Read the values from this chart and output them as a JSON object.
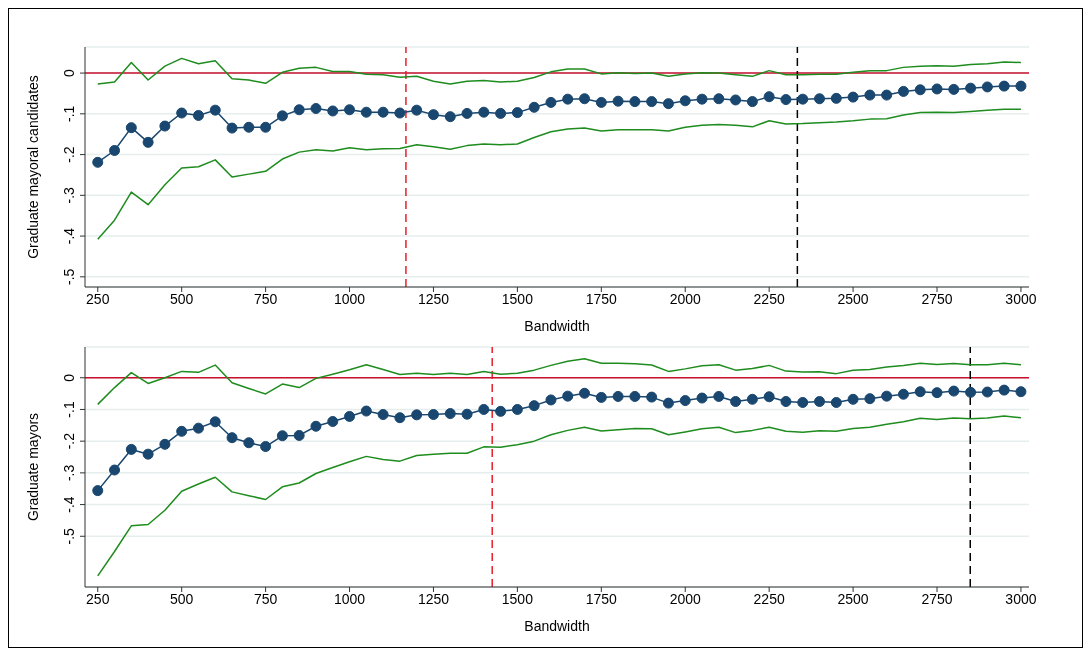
{
  "chart_data": [
    {
      "type": "line",
      "xlabel": "Bandwidth",
      "ylabel": "Graduate mayoral candidates",
      "x": [
        250,
        300,
        350,
        400,
        450,
        500,
        550,
        600,
        650,
        700,
        750,
        800,
        850,
        900,
        950,
        1000,
        1050,
        1100,
        1150,
        1200,
        1250,
        1300,
        1350,
        1400,
        1450,
        1500,
        1550,
        1600,
        1650,
        1700,
        1750,
        1800,
        1850,
        1900,
        1950,
        2000,
        2050,
        2100,
        2150,
        2200,
        2250,
        2300,
        2350,
        2400,
        2450,
        2500,
        2550,
        2600,
        2650,
        2700,
        2750,
        2800,
        2850,
        2900,
        2950,
        3000
      ],
      "series": [
        {
          "color": "#1a476f",
          "marker": "circle",
          "values": [
            -0.219,
            -0.19,
            -0.134,
            -0.17,
            -0.13,
            -0.098,
            -0.104,
            -0.091,
            -0.135,
            -0.133,
            -0.133,
            -0.105,
            -0.09,
            -0.087,
            -0.093,
            -0.09,
            -0.096,
            -0.096,
            -0.098,
            -0.091,
            -0.102,
            -0.107,
            -0.099,
            -0.096,
            -0.099,
            -0.097,
            -0.084,
            -0.072,
            -0.064,
            -0.063,
            -0.072,
            -0.069,
            -0.07,
            -0.07,
            -0.075,
            -0.068,
            -0.064,
            -0.063,
            -0.066,
            -0.07,
            -0.058,
            -0.065,
            -0.064,
            -0.063,
            -0.062,
            -0.059,
            -0.054,
            -0.054,
            -0.045,
            -0.041,
            -0.039,
            -0.04,
            -0.037,
            -0.034,
            -0.032,
            -0.032
          ]
        },
        {
          "color": "#1e8c1e",
          "marker": "none",
          "values": [
            -0.027,
            -0.022,
            0.026,
            -0.017,
            0.017,
            0.036,
            0.023,
            0.03,
            -0.014,
            -0.017,
            -0.025,
            0.002,
            0.012,
            0.014,
            0.004,
            0.004,
            -0.003,
            -0.004,
            -0.01,
            -0.008,
            -0.02,
            -0.027,
            -0.02,
            -0.018,
            -0.022,
            -0.02,
            -0.011,
            0.003,
            0.01,
            0.01,
            -0.002,
            0.001,
            -0.001,
            0,
            -0.008,
            -0.002,
            0.001,
            0,
            -0.004,
            -0.008,
            0.006,
            -0.004,
            -0.004,
            -0.003,
            -0.003,
            0.002,
            0.006,
            0.006,
            0.014,
            0.017,
            0.018,
            0.017,
            0.021,
            0.023,
            0.027,
            0.026
          ]
        },
        {
          "color": "#1e8c1e",
          "marker": "none",
          "values": [
            -0.408,
            -0.361,
            -0.292,
            -0.323,
            -0.274,
            -0.233,
            -0.23,
            -0.213,
            -0.255,
            -0.248,
            -0.241,
            -0.211,
            -0.194,
            -0.188,
            -0.191,
            -0.183,
            -0.188,
            -0.186,
            -0.185,
            -0.176,
            -0.181,
            -0.187,
            -0.178,
            -0.174,
            -0.176,
            -0.174,
            -0.158,
            -0.144,
            -0.137,
            -0.135,
            -0.142,
            -0.139,
            -0.139,
            -0.139,
            -0.142,
            -0.133,
            -0.128,
            -0.126,
            -0.128,
            -0.132,
            -0.117,
            -0.125,
            -0.124,
            -0.122,
            -0.12,
            -0.117,
            -0.113,
            -0.112,
            -0.103,
            -0.097,
            -0.096,
            -0.097,
            -0.094,
            -0.091,
            -0.089,
            -0.089
          ]
        }
      ],
      "xlim": [
        212,
        3024
      ],
      "xticks": [
        250,
        500,
        750,
        1000,
        1250,
        1500,
        1750,
        2000,
        2250,
        2500,
        2750,
        3000
      ],
      "ylim": [
        -0.525,
        0.064
      ],
      "yticks": [
        {
          "value": 0,
          "label": "0"
        },
        {
          "value": -0.1,
          "label": "-.1"
        },
        {
          "value": -0.2,
          "label": "-.2"
        },
        {
          "value": -0.3,
          "label": "-.3"
        },
        {
          "value": -0.4,
          "label": "-.4"
        },
        {
          "value": -0.5,
          "label": "-.5"
        }
      ],
      "grid": "y",
      "line_style": "solid",
      "ref_lines": [
        {
          "axis": "y",
          "value": 0,
          "color": "#c8102e",
          "line_style": "solid"
        },
        {
          "axis": "x",
          "value": 1168,
          "color": "#e8202a",
          "line_style": "dashed"
        },
        {
          "axis": "x",
          "value": 2334,
          "color": "#000000",
          "line_style": "dashed"
        }
      ]
    },
    {
      "type": "line",
      "xlabel": "Bandwidth",
      "ylabel": "Graduate mayors",
      "x": [
        250,
        300,
        350,
        400,
        450,
        500,
        550,
        600,
        650,
        700,
        750,
        800,
        850,
        900,
        950,
        1000,
        1050,
        1100,
        1150,
        1200,
        1250,
        1300,
        1350,
        1400,
        1450,
        1500,
        1550,
        1600,
        1650,
        1700,
        1750,
        1800,
        1850,
        1900,
        1950,
        2000,
        2050,
        2100,
        2150,
        2200,
        2250,
        2300,
        2350,
        2400,
        2450,
        2500,
        2550,
        2600,
        2650,
        2700,
        2750,
        2800,
        2850,
        2900,
        2950,
        3000
      ],
      "series": [
        {
          "color": "#1a476f",
          "marker": "circle",
          "values": [
            -0.356,
            -0.291,
            -0.226,
            -0.241,
            -0.21,
            -0.169,
            -0.159,
            -0.139,
            -0.189,
            -0.205,
            -0.217,
            -0.183,
            -0.182,
            -0.153,
            -0.138,
            -0.122,
            -0.105,
            -0.116,
            -0.126,
            -0.117,
            -0.116,
            -0.113,
            -0.115,
            -0.1,
            -0.106,
            -0.1,
            -0.088,
            -0.07,
            -0.058,
            -0.049,
            -0.062,
            -0.059,
            -0.059,
            -0.061,
            -0.08,
            -0.072,
            -0.064,
            -0.059,
            -0.075,
            -0.068,
            -0.06,
            -0.075,
            -0.078,
            -0.075,
            -0.078,
            -0.068,
            -0.066,
            -0.058,
            -0.052,
            -0.044,
            -0.047,
            -0.042,
            -0.046,
            -0.045,
            -0.039,
            -0.044
          ]
        },
        {
          "color": "#1e8c1e",
          "marker": "none",
          "values": [
            -0.084,
            -0.031,
            0.016,
            -0.018,
            0,
            0.02,
            0.017,
            0.04,
            -0.016,
            -0.034,
            -0.051,
            -0.02,
            -0.031,
            -0.002,
            0.011,
            0.025,
            0.041,
            0.026,
            0.01,
            0.014,
            0.01,
            0.014,
            0.01,
            0.02,
            0.011,
            0.014,
            0.024,
            0.039,
            0.052,
            0.06,
            0.046,
            0.046,
            0.044,
            0.04,
            0.02,
            0.028,
            0.038,
            0.041,
            0.024,
            0.029,
            0.039,
            0.021,
            0.018,
            0.019,
            0.013,
            0.024,
            0.026,
            0.034,
            0.039,
            0.046,
            0.042,
            0.045,
            0.041,
            0.041,
            0.046,
            0.041
          ]
        },
        {
          "color": "#1e8c1e",
          "marker": "none",
          "values": [
            -0.625,
            -0.548,
            -0.467,
            -0.463,
            -0.418,
            -0.358,
            -0.335,
            -0.314,
            -0.36,
            -0.372,
            -0.384,
            -0.344,
            -0.332,
            -0.302,
            -0.283,
            -0.265,
            -0.248,
            -0.258,
            -0.263,
            -0.245,
            -0.241,
            -0.238,
            -0.238,
            -0.218,
            -0.219,
            -0.211,
            -0.2,
            -0.18,
            -0.166,
            -0.156,
            -0.168,
            -0.164,
            -0.16,
            -0.161,
            -0.18,
            -0.171,
            -0.161,
            -0.156,
            -0.173,
            -0.166,
            -0.156,
            -0.169,
            -0.172,
            -0.167,
            -0.169,
            -0.16,
            -0.156,
            -0.147,
            -0.139,
            -0.128,
            -0.132,
            -0.127,
            -0.129,
            -0.127,
            -0.121,
            -0.126
          ]
        }
      ],
      "xlim": [
        212,
        3024
      ],
      "xticks": [
        250,
        500,
        750,
        1000,
        1250,
        1500,
        1750,
        2000,
        2250,
        2500,
        2750,
        3000
      ],
      "ylim": [
        -0.66,
        0.097
      ],
      "yticks": [
        {
          "value": 0,
          "label": "0"
        },
        {
          "value": -0.1,
          "label": "-.1"
        },
        {
          "value": -0.2,
          "label": "-.2"
        },
        {
          "value": -0.3,
          "label": "-.3"
        },
        {
          "value": -0.4,
          "label": "-.4"
        },
        {
          "value": -0.5,
          "label": "-.5"
        }
      ],
      "grid": "y",
      "line_style": "solid",
      "ref_lines": [
        {
          "axis": "y",
          "value": 0,
          "color": "#c8102e",
          "line_style": "solid"
        },
        {
          "axis": "x",
          "value": 1425,
          "color": "#e8202a",
          "line_style": "dashed"
        },
        {
          "axis": "x",
          "value": 2849,
          "color": "#000000",
          "line_style": "dashed"
        }
      ]
    }
  ]
}
